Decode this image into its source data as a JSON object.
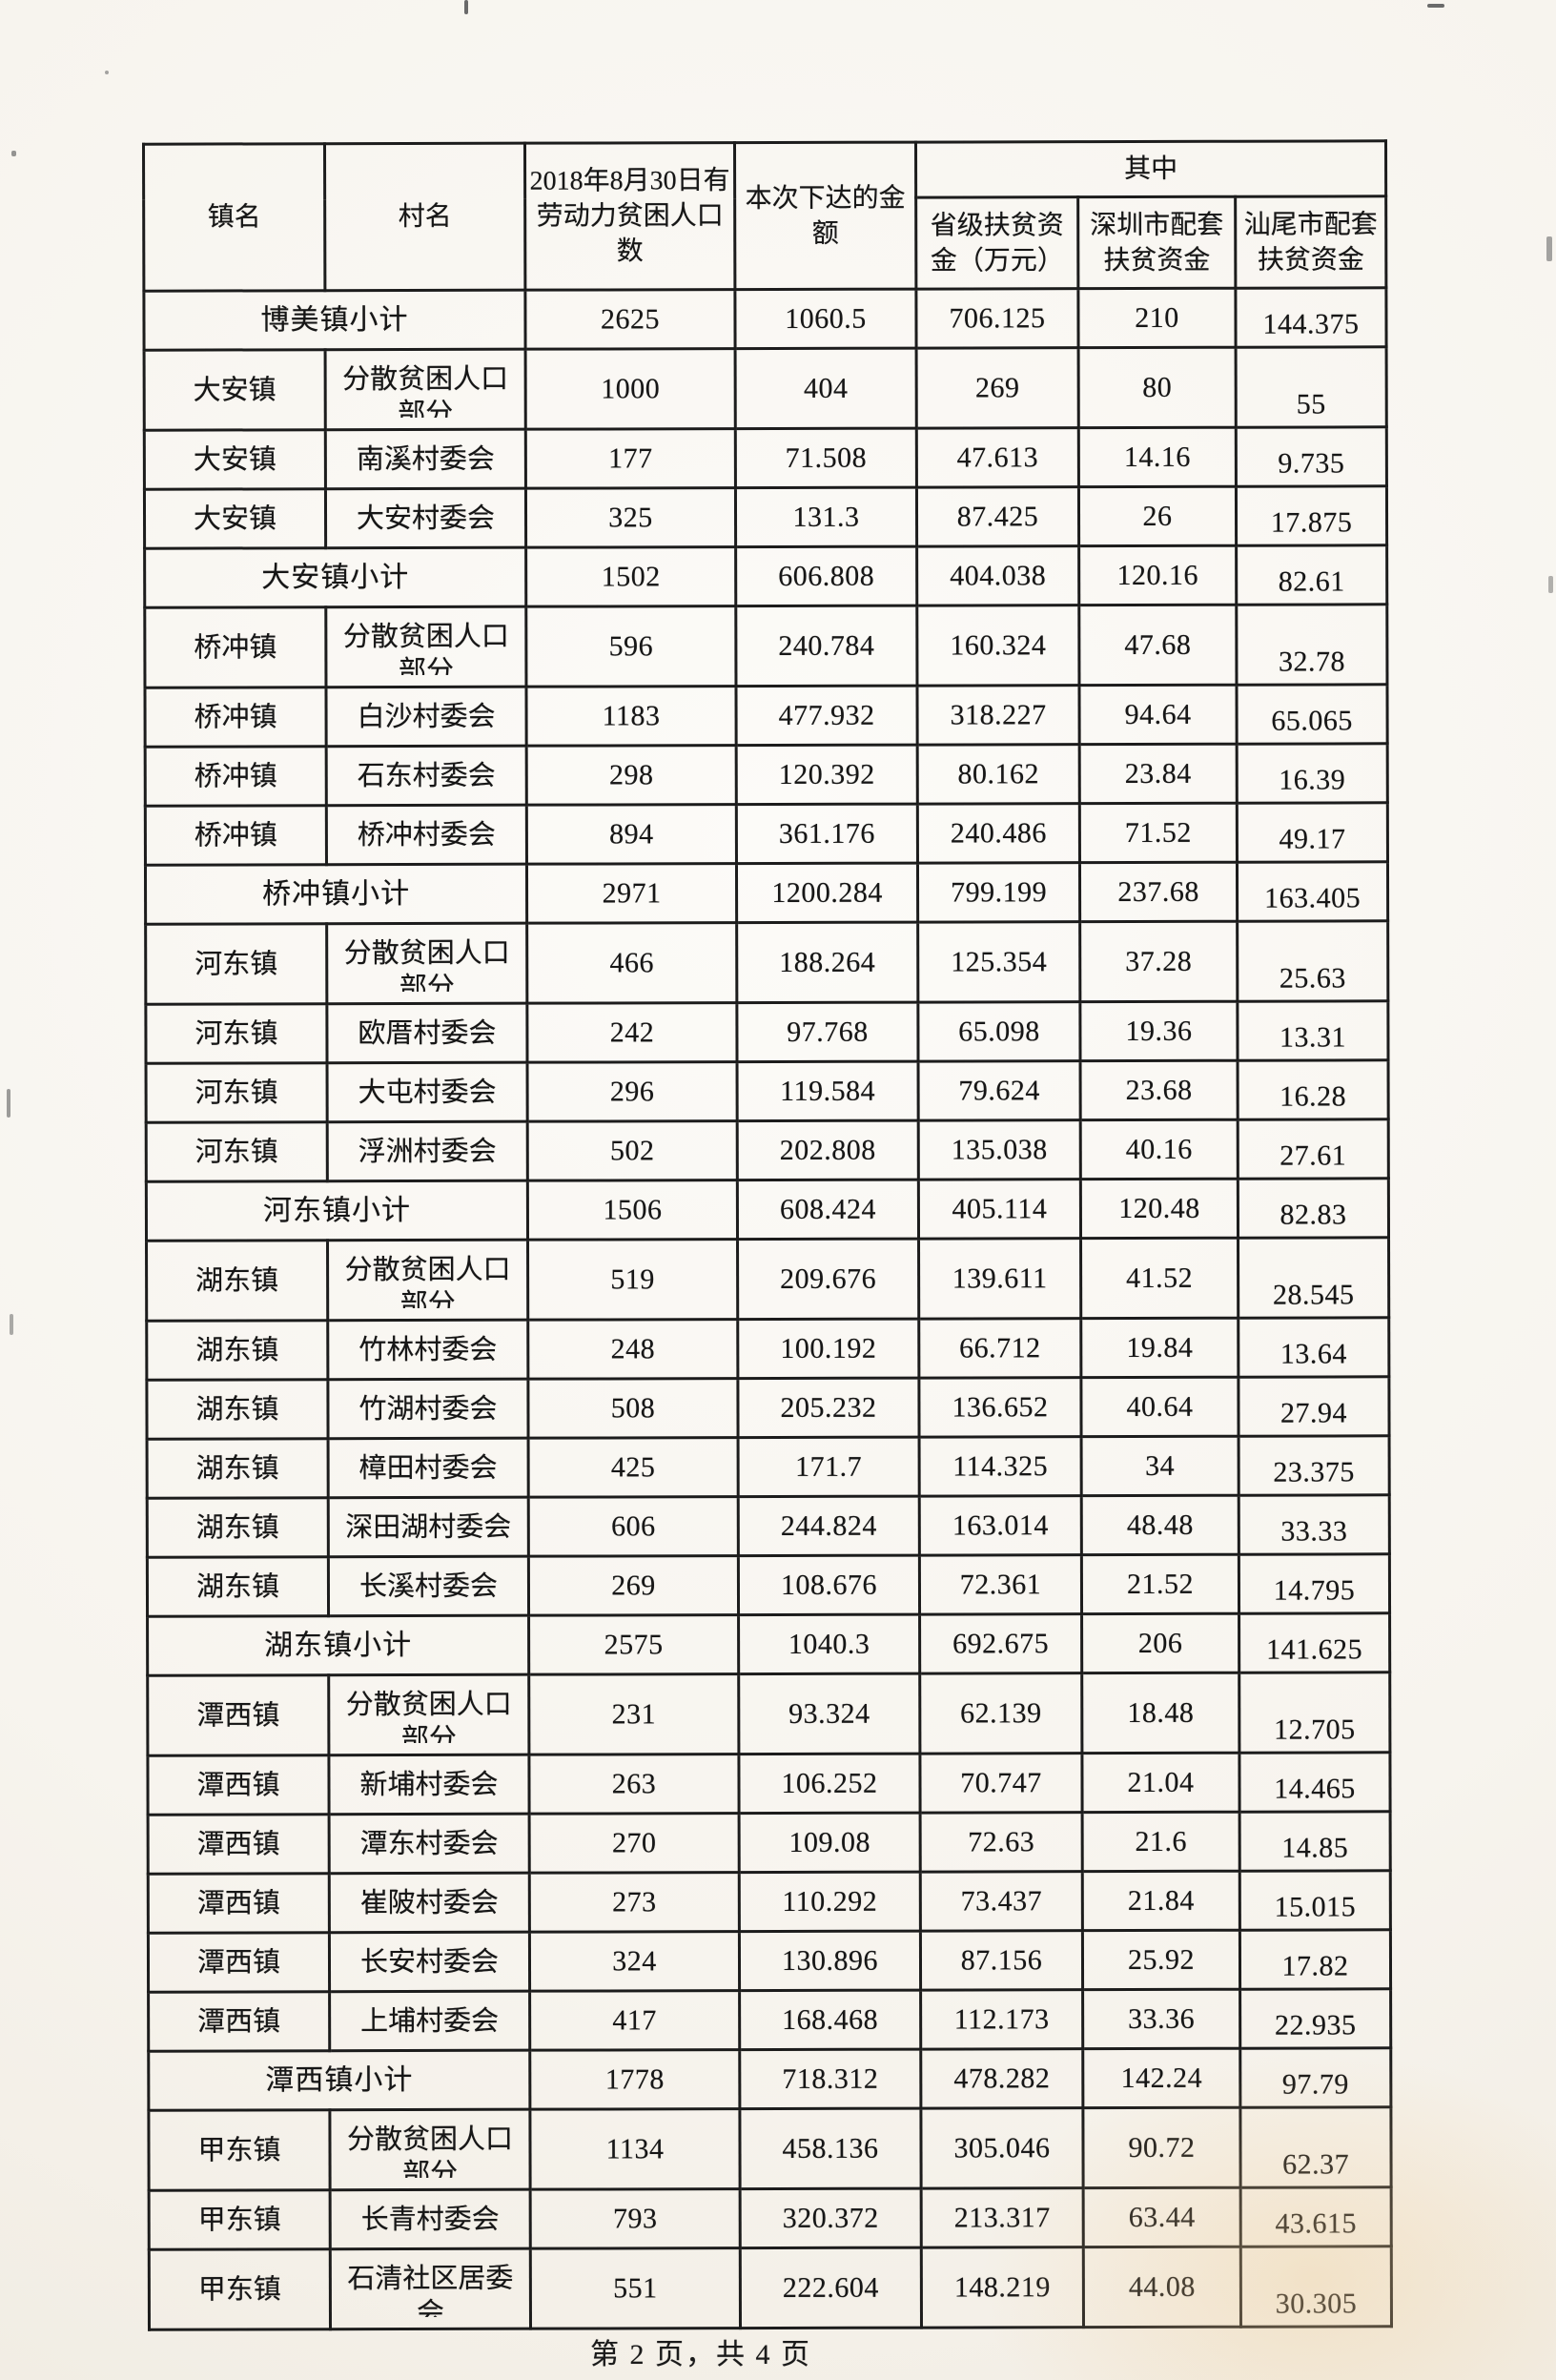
{
  "document": {
    "footer": "第 2 页，共 4 页"
  },
  "table": {
    "header": {
      "town": "镇名",
      "village": "村名",
      "population": "2018年8月30日有劳动力贫困人口数",
      "amount": "本次下达的金额",
      "among": "其中",
      "sub": [
        "省级扶贫资金（万元）",
        "深圳市配套扶贫资金",
        "汕尾市配套扶贫资金"
      ]
    },
    "rows": [
      {
        "kind": "subtotal",
        "label": "博美镇小计",
        "pop": "2625",
        "amount": "1060.5",
        "prov": "706.125",
        "sz": "210",
        "sw": "144.375"
      },
      {
        "kind": "village",
        "town": "大安镇",
        "village": "分散贫困人口部分",
        "pop": "1000",
        "amount": "404",
        "prov": "269",
        "sz": "80",
        "sw": "55"
      },
      {
        "kind": "village",
        "town": "大安镇",
        "village": "南溪村委会",
        "pop": "177",
        "amount": "71.508",
        "prov": "47.613",
        "sz": "14.16",
        "sw": "9.735"
      },
      {
        "kind": "village",
        "town": "大安镇",
        "village": "大安村委会",
        "pop": "325",
        "amount": "131.3",
        "prov": "87.425",
        "sz": "26",
        "sw": "17.875"
      },
      {
        "kind": "subtotal",
        "label": "大安镇小计",
        "pop": "1502",
        "amount": "606.808",
        "prov": "404.038",
        "sz": "120.16",
        "sw": "82.61"
      },
      {
        "kind": "village",
        "town": "桥冲镇",
        "village": "分散贫困人口部分",
        "pop": "596",
        "amount": "240.784",
        "prov": "160.324",
        "sz": "47.68",
        "sw": "32.78"
      },
      {
        "kind": "village",
        "town": "桥冲镇",
        "village": "白沙村委会",
        "pop": "1183",
        "amount": "477.932",
        "prov": "318.227",
        "sz": "94.64",
        "sw": "65.065"
      },
      {
        "kind": "village",
        "town": "桥冲镇",
        "village": "石东村委会",
        "pop": "298",
        "amount": "120.392",
        "prov": "80.162",
        "sz": "23.84",
        "sw": "16.39"
      },
      {
        "kind": "village",
        "town": "桥冲镇",
        "village": "桥冲村委会",
        "pop": "894",
        "amount": "361.176",
        "prov": "240.486",
        "sz": "71.52",
        "sw": "49.17"
      },
      {
        "kind": "subtotal",
        "label": "桥冲镇小计",
        "pop": "2971",
        "amount": "1200.284",
        "prov": "799.199",
        "sz": "237.68",
        "sw": "163.405"
      },
      {
        "kind": "village",
        "town": "河东镇",
        "village": "分散贫困人口部分",
        "pop": "466",
        "amount": "188.264",
        "prov": "125.354",
        "sz": "37.28",
        "sw": "25.63"
      },
      {
        "kind": "village",
        "town": "河东镇",
        "village": "欧厝村委会",
        "pop": "242",
        "amount": "97.768",
        "prov": "65.098",
        "sz": "19.36",
        "sw": "13.31"
      },
      {
        "kind": "village",
        "town": "河东镇",
        "village": "大屯村委会",
        "pop": "296",
        "amount": "119.584",
        "prov": "79.624",
        "sz": "23.68",
        "sw": "16.28"
      },
      {
        "kind": "village",
        "town": "河东镇",
        "village": "浮洲村委会",
        "pop": "502",
        "amount": "202.808",
        "prov": "135.038",
        "sz": "40.16",
        "sw": "27.61"
      },
      {
        "kind": "subtotal",
        "label": "河东镇小计",
        "pop": "1506",
        "amount": "608.424",
        "prov": "405.114",
        "sz": "120.48",
        "sw": "82.83"
      },
      {
        "kind": "village",
        "town": "湖东镇",
        "village": "分散贫困人口部分",
        "pop": "519",
        "amount": "209.676",
        "prov": "139.611",
        "sz": "41.52",
        "sw": "28.545"
      },
      {
        "kind": "village",
        "town": "湖东镇",
        "village": "竹林村委会",
        "pop": "248",
        "amount": "100.192",
        "prov": "66.712",
        "sz": "19.84",
        "sw": "13.64"
      },
      {
        "kind": "village",
        "town": "湖东镇",
        "village": "竹湖村委会",
        "pop": "508",
        "amount": "205.232",
        "prov": "136.652",
        "sz": "40.64",
        "sw": "27.94"
      },
      {
        "kind": "village",
        "town": "湖东镇",
        "village": "樟田村委会",
        "pop": "425",
        "amount": "171.7",
        "prov": "114.325",
        "sz": "34",
        "sw": "23.375"
      },
      {
        "kind": "village",
        "town": "湖东镇",
        "village": "深田湖村委会",
        "pop": "606",
        "amount": "244.824",
        "prov": "163.014",
        "sz": "48.48",
        "sw": "33.33"
      },
      {
        "kind": "village",
        "town": "湖东镇",
        "village": "长溪村委会",
        "pop": "269",
        "amount": "108.676",
        "prov": "72.361",
        "sz": "21.52",
        "sw": "14.795"
      },
      {
        "kind": "subtotal",
        "label": "湖东镇小计",
        "pop": "2575",
        "amount": "1040.3",
        "prov": "692.675",
        "sz": "206",
        "sw": "141.625"
      },
      {
        "kind": "village",
        "town": "潭西镇",
        "village": "分散贫困人口部分",
        "pop": "231",
        "amount": "93.324",
        "prov": "62.139",
        "sz": "18.48",
        "sw": "12.705"
      },
      {
        "kind": "village",
        "town": "潭西镇",
        "village": "新埔村委会",
        "pop": "263",
        "amount": "106.252",
        "prov": "70.747",
        "sz": "21.04",
        "sw": "14.465"
      },
      {
        "kind": "village",
        "town": "潭西镇",
        "village": "潭东村委会",
        "pop": "270",
        "amount": "109.08",
        "prov": "72.63",
        "sz": "21.6",
        "sw": "14.85"
      },
      {
        "kind": "village",
        "town": "潭西镇",
        "village": "崔陂村委会",
        "pop": "273",
        "amount": "110.292",
        "prov": "73.437",
        "sz": "21.84",
        "sw": "15.015"
      },
      {
        "kind": "village",
        "town": "潭西镇",
        "village": "长安村委会",
        "pop": "324",
        "amount": "130.896",
        "prov": "87.156",
        "sz": "25.92",
        "sw": "17.82"
      },
      {
        "kind": "village",
        "town": "潭西镇",
        "village": "上埔村委会",
        "pop": "417",
        "amount": "168.468",
        "prov": "112.173",
        "sz": "33.36",
        "sw": "22.935"
      },
      {
        "kind": "subtotal",
        "label": "潭西镇小计",
        "pop": "1778",
        "amount": "718.312",
        "prov": "478.282",
        "sz": "142.24",
        "sw": "97.79"
      },
      {
        "kind": "village",
        "town": "甲东镇",
        "village": "分散贫困人口部分",
        "pop": "1134",
        "amount": "458.136",
        "prov": "305.046",
        "sz": "90.72",
        "sw": "62.37"
      },
      {
        "kind": "village",
        "town": "甲东镇",
        "village": "长青村委会",
        "pop": "793",
        "amount": "320.372",
        "prov": "213.317",
        "sz": "63.44",
        "sw": "43.615"
      },
      {
        "kind": "village",
        "town": "甲东镇",
        "village": "石清社区居委会",
        "pop": "551",
        "amount": "222.604",
        "prov": "148.219",
        "sz": "44.08",
        "sw": "30.305"
      }
    ]
  }
}
